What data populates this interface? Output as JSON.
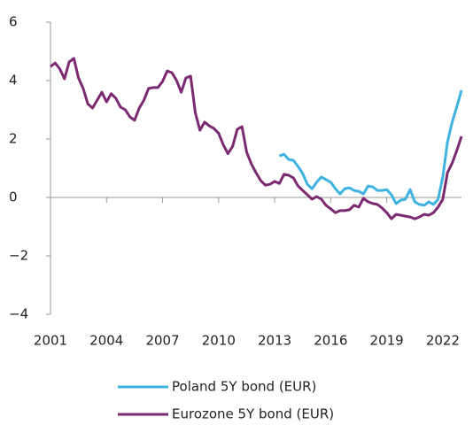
{
  "chart_data": {
    "type": "line",
    "x": [
      2001,
      2001.25,
      2001.5,
      2001.75,
      2002,
      2002.25,
      2002.5,
      2002.75,
      2003,
      2003.25,
      2003.5,
      2003.75,
      2004,
      2004.25,
      2004.5,
      2004.75,
      2005,
      2005.25,
      2005.5,
      2005.75,
      2006,
      2006.25,
      2006.5,
      2006.75,
      2007,
      2007.25,
      2007.5,
      2007.75,
      2008,
      2008.25,
      2008.5,
      2008.75,
      2009,
      2009.25,
      2009.5,
      2009.75,
      2010,
      2010.25,
      2010.5,
      2010.75,
      2011,
      2011.25,
      2011.5,
      2011.75,
      2012,
      2012.25,
      2012.5,
      2012.75,
      2013,
      2013.25,
      2013.5,
      2013.75,
      2014,
      2014.25,
      2014.5,
      2014.75,
      2015,
      2015.25,
      2015.5,
      2015.75,
      2016,
      2016.25,
      2016.5,
      2016.75,
      2017,
      2017.25,
      2017.5,
      2017.75,
      2018,
      2018.25,
      2018.5,
      2018.75,
      2019,
      2019.25,
      2019.5,
      2019.75,
      2020,
      2020.25,
      2020.5,
      2020.75,
      2021,
      2021.25,
      2021.5,
      2021.75,
      2022,
      2022.25,
      2022.5,
      2022.75,
      2023
    ],
    "series": [
      {
        "name": "Poland 5Y bond (EUR)",
        "color": "#3fb3e0",
        "values": [
          null,
          null,
          null,
          null,
          null,
          null,
          null,
          null,
          null,
          null,
          null,
          null,
          null,
          null,
          null,
          null,
          null,
          null,
          null,
          null,
          null,
          null,
          null,
          null,
          null,
          null,
          null,
          null,
          null,
          null,
          null,
          null,
          null,
          null,
          null,
          null,
          null,
          null,
          null,
          null,
          null,
          null,
          null,
          null,
          null,
          null,
          null,
          null,
          null,
          1.42,
          1.48,
          1.3,
          1.27,
          1.06,
          0.82,
          0.45,
          0.3,
          0.52,
          0.7,
          0.61,
          0.52,
          0.3,
          0.12,
          0.3,
          0.33,
          0.24,
          0.21,
          0.12,
          0.39,
          0.36,
          0.24,
          0.24,
          0.27,
          0.09,
          -0.21,
          -0.09,
          -0.06,
          0.27,
          -0.15,
          -0.24,
          -0.27,
          -0.15,
          -0.24,
          -0.06,
          0.7,
          1.9,
          2.58,
          3.1,
          3.67
        ]
      },
      {
        "name": "Eurozone 5Y bond (EUR)",
        "color": "#7b2a72",
        "values": [
          4.48,
          4.6,
          4.4,
          4.06,
          4.64,
          4.76,
          4.09,
          3.73,
          3.2,
          3.06,
          3.33,
          3.6,
          3.27,
          3.55,
          3.39,
          3.09,
          3.0,
          2.76,
          2.64,
          3.06,
          3.33,
          3.73,
          3.76,
          3.76,
          3.97,
          4.33,
          4.27,
          4.0,
          3.6,
          4.09,
          4.15,
          2.9,
          2.3,
          2.58,
          2.45,
          2.36,
          2.2,
          1.8,
          1.5,
          1.75,
          2.33,
          2.42,
          1.55,
          1.15,
          0.85,
          0.58,
          0.42,
          0.45,
          0.55,
          0.48,
          0.79,
          0.76,
          0.67,
          0.39,
          0.24,
          0.09,
          -0.06,
          0.03,
          -0.06,
          -0.27,
          -0.39,
          -0.52,
          -0.45,
          -0.45,
          -0.42,
          -0.27,
          -0.33,
          -0.03,
          -0.15,
          -0.21,
          -0.24,
          -0.36,
          -0.52,
          -0.73,
          -0.58,
          -0.61,
          -0.64,
          -0.67,
          -0.73,
          -0.67,
          -0.58,
          -0.61,
          -0.52,
          -0.33,
          -0.06,
          0.85,
          1.18,
          1.6,
          2.09
        ]
      }
    ],
    "xlim": [
      2001,
      2023
    ],
    "xticks": [
      2001,
      2004,
      2007,
      2010,
      2013,
      2016,
      2019,
      2022
    ],
    "ylim": [
      -4,
      6
    ],
    "yticks": [
      {
        "value": -4,
        "label": "−4"
      },
      {
        "value": -2,
        "label": "−2"
      },
      0,
      2,
      4,
      6
    ]
  }
}
